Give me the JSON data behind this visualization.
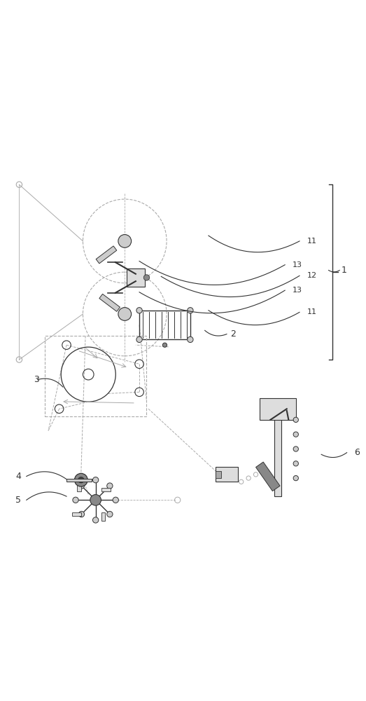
{
  "bg_color": "#ffffff",
  "line_color": "#333333",
  "light_gray": "#aaaaaa",
  "dark_gray": "#555555",
  "label_color": "#222222",
  "figsize": [
    5.23,
    10.0
  ],
  "dpi": 100
}
